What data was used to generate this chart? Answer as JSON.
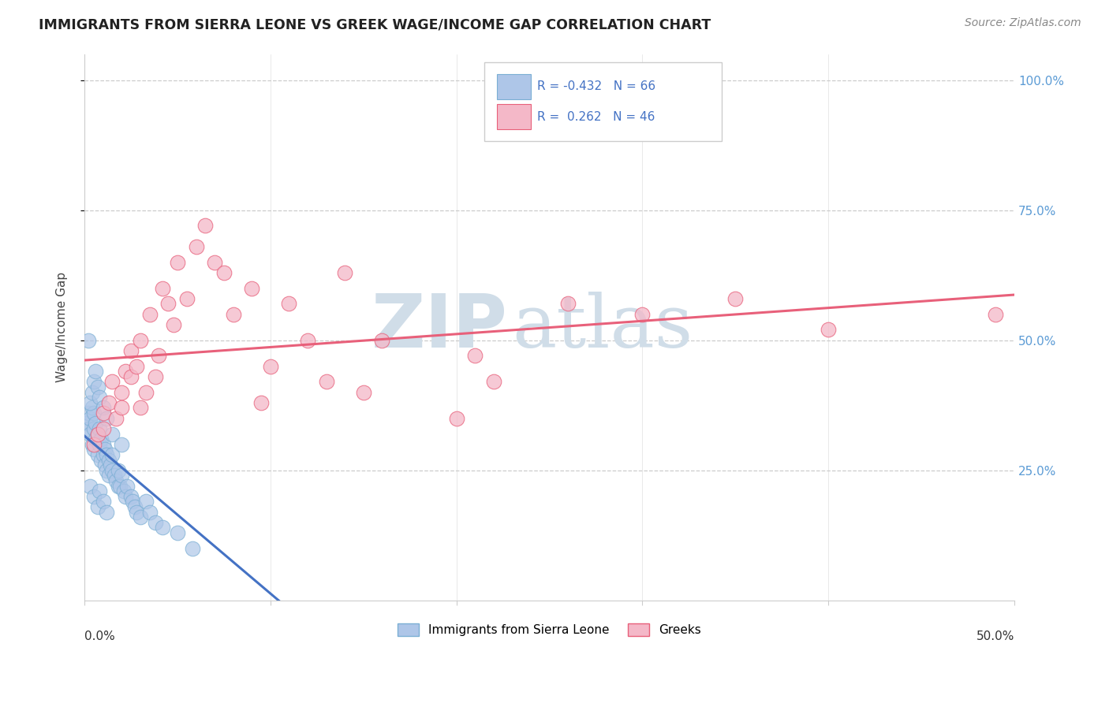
{
  "title": "IMMIGRANTS FROM SIERRA LEONE VS GREEK WAGE/INCOME GAP CORRELATION CHART",
  "source": "Source: ZipAtlas.com",
  "ylabel": "Wage/Income Gap",
  "y_tick_labels": [
    "25.0%",
    "50.0%",
    "75.0%",
    "100.0%"
  ],
  "y_tick_positions": [
    0.25,
    0.5,
    0.75,
    1.0
  ],
  "x_range": [
    0.0,
    0.5
  ],
  "y_range": [
    0.0,
    1.05
  ],
  "blue_R": -0.432,
  "pink_R": 0.262,
  "blue_line_color": "#4472c4",
  "pink_line_color": "#e8607a",
  "blue_scatter_color": "#aec6e8",
  "pink_scatter_color": "#f4b8c8",
  "blue_scatter_edgecolor": "#7bafd4",
  "pink_scatter_edgecolor": "#e8607a",
  "watermark_zip": "ZIP",
  "watermark_atlas": "atlas",
  "blue_points_x": [
    0.001,
    0.002,
    0.002,
    0.003,
    0.003,
    0.004,
    0.004,
    0.005,
    0.005,
    0.005,
    0.006,
    0.006,
    0.007,
    0.007,
    0.008,
    0.008,
    0.009,
    0.009,
    0.01,
    0.01,
    0.011,
    0.011,
    0.012,
    0.012,
    0.013,
    0.013,
    0.014,
    0.015,
    0.015,
    0.016,
    0.017,
    0.018,
    0.018,
    0.019,
    0.02,
    0.021,
    0.022,
    0.023,
    0.025,
    0.026,
    0.027,
    0.028,
    0.03,
    0.033,
    0.035,
    0.038,
    0.042,
    0.05,
    0.058,
    0.002,
    0.003,
    0.004,
    0.005,
    0.006,
    0.007,
    0.008,
    0.01,
    0.012,
    0.015,
    0.02,
    0.003,
    0.005,
    0.007,
    0.008,
    0.01,
    0.012
  ],
  "blue_points_y": [
    0.34,
    0.33,
    0.36,
    0.35,
    0.32,
    0.3,
    0.37,
    0.29,
    0.33,
    0.36,
    0.31,
    0.34,
    0.28,
    0.32,
    0.3,
    0.33,
    0.27,
    0.31,
    0.28,
    0.3,
    0.26,
    0.29,
    0.25,
    0.28,
    0.24,
    0.27,
    0.26,
    0.25,
    0.28,
    0.24,
    0.23,
    0.22,
    0.25,
    0.22,
    0.24,
    0.21,
    0.2,
    0.22,
    0.2,
    0.19,
    0.18,
    0.17,
    0.16,
    0.19,
    0.17,
    0.15,
    0.14,
    0.13,
    0.1,
    0.5,
    0.38,
    0.4,
    0.42,
    0.44,
    0.41,
    0.39,
    0.37,
    0.35,
    0.32,
    0.3,
    0.22,
    0.2,
    0.18,
    0.21,
    0.19,
    0.17
  ],
  "pink_points_x": [
    0.005,
    0.007,
    0.01,
    0.01,
    0.013,
    0.015,
    0.017,
    0.02,
    0.02,
    0.022,
    0.025,
    0.025,
    0.028,
    0.03,
    0.03,
    0.033,
    0.035,
    0.038,
    0.04,
    0.042,
    0.045,
    0.048,
    0.05,
    0.055,
    0.06,
    0.065,
    0.07,
    0.075,
    0.08,
    0.09,
    0.095,
    0.1,
    0.11,
    0.12,
    0.13,
    0.14,
    0.15,
    0.16,
    0.2,
    0.21,
    0.22,
    0.26,
    0.3,
    0.35,
    0.4,
    0.49
  ],
  "pink_points_y": [
    0.3,
    0.32,
    0.33,
    0.36,
    0.38,
    0.42,
    0.35,
    0.37,
    0.4,
    0.44,
    0.48,
    0.43,
    0.45,
    0.37,
    0.5,
    0.4,
    0.55,
    0.43,
    0.47,
    0.6,
    0.57,
    0.53,
    0.65,
    0.58,
    0.68,
    0.72,
    0.65,
    0.63,
    0.55,
    0.6,
    0.38,
    0.45,
    0.57,
    0.5,
    0.42,
    0.63,
    0.4,
    0.5,
    0.35,
    0.47,
    0.42,
    0.57,
    0.55,
    0.58,
    0.52,
    0.55
  ]
}
